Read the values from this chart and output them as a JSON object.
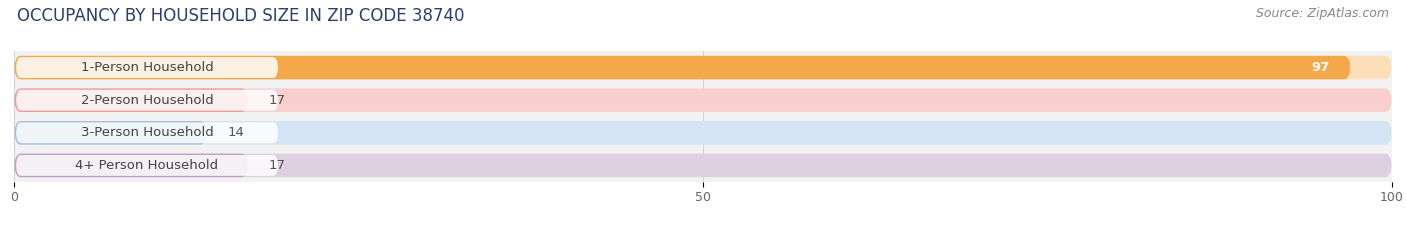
{
  "title": "OCCUPANCY BY HOUSEHOLD SIZE IN ZIP CODE 38740",
  "source": "Source: ZipAtlas.com",
  "categories": [
    "1-Person Household",
    "2-Person Household",
    "3-Person Household",
    "4+ Person Household"
  ],
  "values": [
    97,
    17,
    14,
    17
  ],
  "bar_colors": [
    "#F5A84A",
    "#EE9898",
    "#A2BEDD",
    "#C0A0C0"
  ],
  "bar_bg_colors": [
    "#FCDEB8",
    "#F8CECE",
    "#D4E4F4",
    "#DDD0E0"
  ],
  "xlim": [
    0,
    100
  ],
  "xticks": [
    0,
    50,
    100
  ],
  "background_color": "#ffffff",
  "plot_bg_color": "#f2f2f2",
  "title_fontsize": 12,
  "source_fontsize": 9,
  "label_fontsize": 9.5,
  "value_fontsize": 9.5,
  "title_color": "#2c3e6b",
  "source_color": "#888888",
  "label_color": "#444444",
  "value_color_inside": "#ffffff",
  "value_color_outside": "#555555"
}
